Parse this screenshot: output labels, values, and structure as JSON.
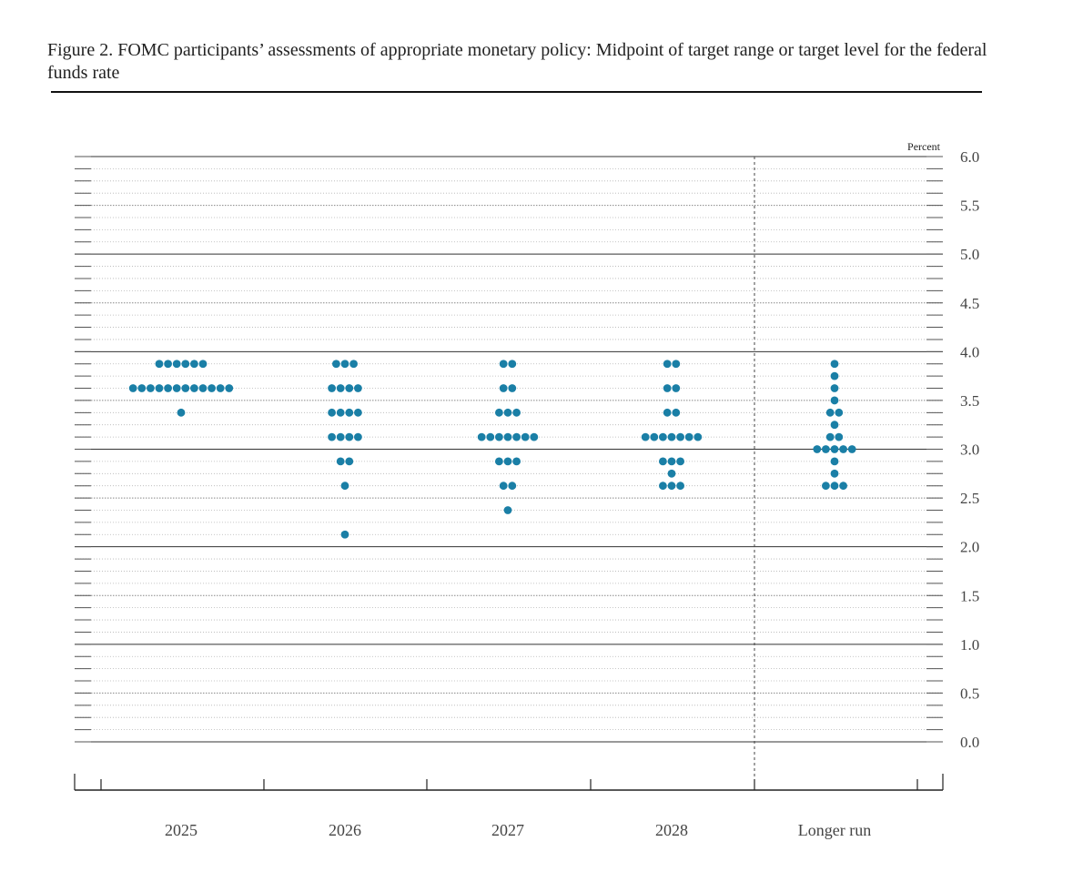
{
  "chart_data": {
    "type": "scatter",
    "title": "Figure 2. FOMC participants’ assessments of appropriate monetary policy: Midpoint of target range or target level for the federal funds rate",
    "ylabel": "Percent",
    "ylim": [
      0,
      6
    ],
    "yticks": [
      "6.0",
      "5.5",
      "5.0",
      "4.5",
      "4.0",
      "3.5",
      "3.0",
      "2.5",
      "2.0",
      "1.5",
      "1.0",
      "0.5",
      "0.0"
    ],
    "categories": [
      "2025",
      "2026",
      "2027",
      "2028",
      "Longer run"
    ],
    "grid": true,
    "marker_color": "#1a7fa6",
    "series": [
      {
        "values": [
          {
            "y": 3.875,
            "count": 6
          },
          {
            "y": 3.625,
            "count": 12
          },
          {
            "y": 3.375,
            "count": 1
          }
        ]
      },
      {
        "values": [
          {
            "y": 3.875,
            "count": 3
          },
          {
            "y": 3.625,
            "count": 4
          },
          {
            "y": 3.375,
            "count": 4
          },
          {
            "y": 3.125,
            "count": 4
          },
          {
            "y": 2.875,
            "count": 2
          },
          {
            "y": 2.625,
            "count": 1
          },
          {
            "y": 2.125,
            "count": 1
          }
        ]
      },
      {
        "values": [
          {
            "y": 3.875,
            "count": 2
          },
          {
            "y": 3.625,
            "count": 2
          },
          {
            "y": 3.375,
            "count": 3
          },
          {
            "y": 3.125,
            "count": 7
          },
          {
            "y": 2.875,
            "count": 3
          },
          {
            "y": 2.625,
            "count": 2
          },
          {
            "y": 2.375,
            "count": 1
          }
        ]
      },
      {
        "values": [
          {
            "y": 3.875,
            "count": 2
          },
          {
            "y": 3.625,
            "count": 2
          },
          {
            "y": 3.375,
            "count": 2
          },
          {
            "y": 3.125,
            "count": 7
          },
          {
            "y": 2.875,
            "count": 3
          },
          {
            "y": 2.75,
            "count": 1
          },
          {
            "y": 2.625,
            "count": 3
          }
        ]
      },
      {
        "values": [
          {
            "y": 3.875,
            "count": 1
          },
          {
            "y": 3.75,
            "count": 1
          },
          {
            "y": 3.625,
            "count": 1
          },
          {
            "y": 3.5,
            "count": 1
          },
          {
            "y": 3.375,
            "count": 2
          },
          {
            "y": 3.25,
            "count": 1
          },
          {
            "y": 3.125,
            "count": 2
          },
          {
            "y": 3.0,
            "count": 5
          },
          {
            "y": 2.875,
            "count": 1
          },
          {
            "y": 2.75,
            "count": 1
          },
          {
            "y": 2.625,
            "count": 3
          }
        ]
      }
    ]
  }
}
